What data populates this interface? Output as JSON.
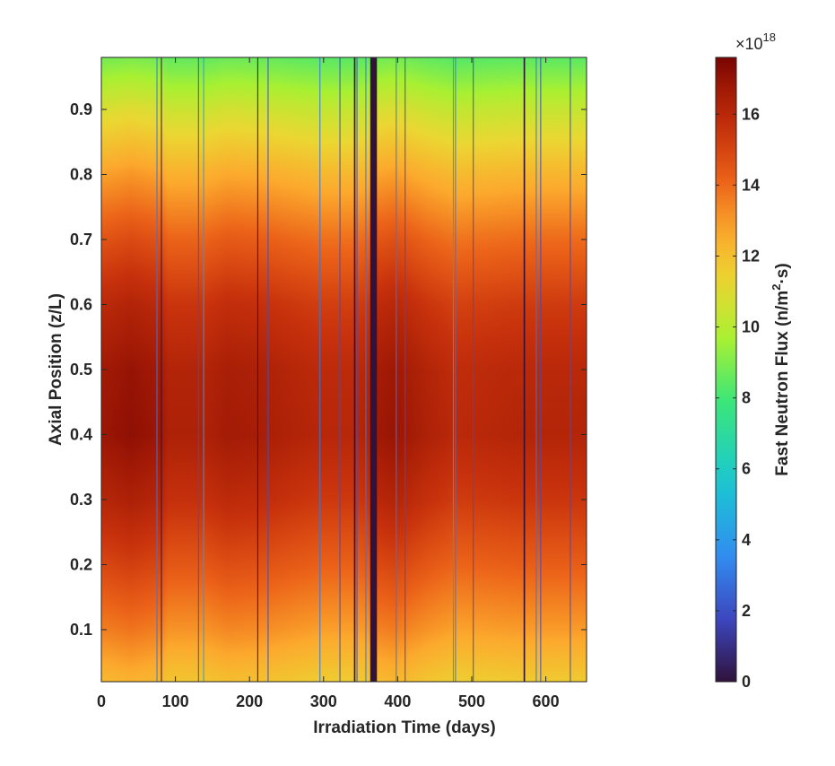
{
  "chart_data": {
    "type": "heatmap",
    "title": "",
    "xlabel": "Irradiation Time (days)",
    "ylabel": "Axial Position (z/L)",
    "xlim": [
      0,
      655
    ],
    "ylim": [
      0.02,
      0.98
    ],
    "x_ticks": [
      "0",
      "100",
      "200",
      "300",
      "400",
      "500",
      "600"
    ],
    "y_ticks": [
      "0.1",
      "0.2",
      "0.3",
      "0.4",
      "0.5",
      "0.6",
      "0.7",
      "0.8",
      "0.9"
    ],
    "colorbar": {
      "label": "Fast Neutron Flux (n/m",
      "label_sup": "2",
      "label_end": "·s)",
      "exponent_prefix": "×10",
      "exponent_power": "18",
      "ticks": [
        "0",
        "2",
        "4",
        "6",
        "8",
        "10",
        "12",
        "14",
        "16"
      ],
      "range": [
        0,
        17.6
      ]
    },
    "axial_profile": {
      "z": [
        0.02,
        0.1,
        0.2,
        0.3,
        0.4,
        0.5,
        0.6,
        0.7,
        0.8,
        0.9,
        0.98
      ],
      "relative_flux": [
        0.72,
        0.8,
        0.88,
        0.95,
        0.995,
        0.985,
        0.94,
        0.86,
        0.76,
        0.64,
        0.52
      ]
    },
    "power_history": {
      "t": [
        0,
        40,
        80,
        90,
        140,
        170,
        210,
        260,
        300,
        340,
        360,
        372,
        395,
        440,
        480,
        520,
        560,
        600,
        655
      ],
      "peak_flux": [
        16.9,
        17.2,
        16.9,
        16.4,
        16.4,
        16.7,
        16.6,
        16.3,
        16.1,
        16.1,
        16.3,
        16.8,
        17.0,
        16.4,
        16.0,
        16.1,
        16.2,
        16.2,
        16.2
      ]
    },
    "outages": [
      {
        "start": 74.5,
        "end": 75.5,
        "level": 3
      },
      {
        "start": 80.5,
        "end": 81.5,
        "level": 0
      },
      {
        "start": 130.5,
        "end": 131.5,
        "level": 2
      },
      {
        "start": 137.5,
        "end": 138.5,
        "level": 4
      },
      {
        "start": 210.5,
        "end": 211.5,
        "level": 0
      },
      {
        "start": 224.5,
        "end": 225.5,
        "level": 2
      },
      {
        "start": 294.5,
        "end": 295.5,
        "level": 3
      },
      {
        "start": 321.5,
        "end": 322.5,
        "level": 2
      },
      {
        "start": 341,
        "end": 343,
        "level": 0
      },
      {
        "start": 344.5,
        "end": 345.5,
        "level": 2
      },
      {
        "start": 356.5,
        "end": 357.5,
        "level": 3
      },
      {
        "start": 363,
        "end": 372,
        "level": 0
      },
      {
        "start": 397.5,
        "end": 398.5,
        "level": 3
      },
      {
        "start": 409.5,
        "end": 410.5,
        "level": 2
      },
      {
        "start": 474.5,
        "end": 475.5,
        "level": 4
      },
      {
        "start": 477.5,
        "end": 478.5,
        "level": 3
      },
      {
        "start": 501.5,
        "end": 502.5,
        "level": 2
      },
      {
        "start": 570,
        "end": 572,
        "level": 0
      },
      {
        "start": 586.5,
        "end": 587.5,
        "level": 3
      },
      {
        "start": 592.5,
        "end": 593.5,
        "level": 2
      },
      {
        "start": 632.5,
        "end": 633.5,
        "level": 2
      }
    ]
  }
}
